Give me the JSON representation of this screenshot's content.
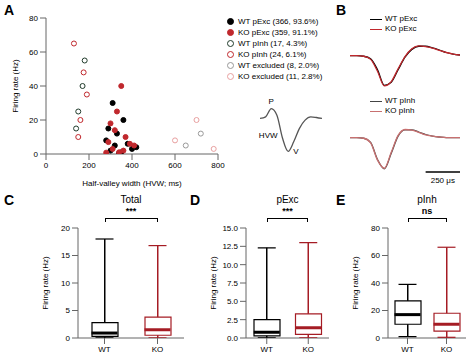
{
  "chart_data": [
    {
      "panel": "A",
      "type": "scatter",
      "xlabel": "Half-valley width (HVW; ms)",
      "ylabel": "Firing rate (Hz)",
      "xlim": [
        0,
        800
      ],
      "xticks": [
        0,
        200,
        400,
        600,
        800
      ],
      "ylim": [
        0,
        80
      ],
      "yticks": [
        0,
        20,
        40,
        60,
        80
      ],
      "grid": false,
      "legend": "upper right",
      "series": [
        {
          "name": "WT pExc (366, 93.6%)",
          "color": "#000000",
          "marker": "circle",
          "x": [
            300,
            320,
            350,
            280,
            400,
            330,
            360,
            420,
            310,
            380,
            290,
            340
          ],
          "values": [
            2,
            5,
            1,
            8,
            3,
            12,
            20,
            4,
            30,
            6,
            15,
            0.5
          ]
        },
        {
          "name": "KO pExc (359, 91.1%)",
          "color": "#c0282d",
          "marker": "circle",
          "x": [
            310,
            340,
            290,
            370,
            330,
            410,
            300,
            360,
            350,
            320,
            390,
            280
          ],
          "values": [
            3,
            1,
            7,
            10,
            25,
            5,
            18,
            2,
            40,
            14,
            6,
            0.8
          ]
        },
        {
          "name": "WT pInh (17, 4.3%)",
          "color": "#1f3a2a",
          "marker": "open_circle",
          "x": [
            150,
            170,
            140,
            180
          ],
          "values": [
            25,
            40,
            15,
            55
          ]
        },
        {
          "name": "KO pInh (24, 6.1%)",
          "color": "#c0282d",
          "marker": "open_circle",
          "x": [
            160,
            130,
            190,
            150,
            175
          ],
          "values": [
            20,
            65,
            35,
            10,
            48
          ]
        },
        {
          "name": "WT excluded (8, 2.0%)",
          "color": "#999999",
          "marker": "open_circle",
          "x": [
            650,
            720
          ],
          "values": [
            5,
            12
          ]
        },
        {
          "name": "KO excluded (11, 2.8%)",
          "color": "#e8a0a0",
          "marker": "open_circle",
          "x": [
            600,
            780,
            700
          ],
          "values": [
            8,
            3,
            20
          ]
        }
      ]
    },
    {
      "type": "line",
      "xlim": [
        0,
        550
      ],
      "ylim": [
        -1.2,
        0.5
      ],
      "tick_labels": false,
      "color": "#555555",
      "x": [
        0,
        50,
        100,
        150,
        200,
        250,
        300,
        350,
        400,
        450,
        500,
        550
      ],
      "values": [
        0,
        0.05,
        0.3,
        0.1,
        -0.6,
        -1,
        -0.7,
        -0.3,
        -0.05,
        0.05,
        0.03,
        0
      ],
      "annotations": [
        {
          "text": "P",
          "x": 100,
          "y": 0.3
        },
        {
          "text": "V",
          "x": 250,
          "y": -1
        },
        {
          "text": "HVW",
          "x": 200,
          "y": -0.5
        }
      ]
    },
    {
      "panel": "B",
      "type": "line",
      "xlim": [
        0,
        800
      ],
      "ylim": [
        -1.1,
        0.5
      ],
      "tick_labels": false,
      "legend": "upper right",
      "x": [
        0,
        50,
        100,
        150,
        200,
        250,
        300,
        350,
        400,
        450,
        500,
        550,
        600,
        650,
        700,
        750,
        800
      ],
      "series": [
        {
          "name": "WT pExc",
          "color": "#000000",
          "values": [
            0,
            0,
            -0.02,
            -0.1,
            -0.45,
            -0.95,
            -0.85,
            -0.45,
            -0.05,
            0.2,
            0.3,
            0.3,
            0.25,
            0.18,
            0.1,
            0.05,
            0.02
          ]
        },
        {
          "name": "KO pExc",
          "color": "#c0282d",
          "values": [
            0,
            0,
            -0.02,
            -0.12,
            -0.5,
            -0.97,
            -0.83,
            -0.42,
            -0.03,
            0.22,
            0.31,
            0.29,
            0.24,
            0.17,
            0.1,
            0.05,
            0.02
          ]
        }
      ]
    },
    {
      "type": "line",
      "xlim": [
        0,
        800
      ],
      "ylim": [
        -1.1,
        0.5
      ],
      "tick_labels": false,
      "legend": "upper right",
      "x": [
        0,
        50,
        100,
        150,
        200,
        250,
        300,
        350,
        400,
        450,
        500,
        550,
        600,
        650,
        700,
        750,
        800
      ],
      "series": [
        {
          "name": "WT pInh",
          "color": "#444444",
          "values": [
            0,
            0,
            -0.02,
            -0.15,
            -0.7,
            -1,
            -0.5,
            0.05,
            0.25,
            0.25,
            0.18,
            0.1,
            0.05,
            0.02,
            0,
            0,
            0
          ]
        },
        {
          "name": "KO pInh",
          "color": "#c87070",
          "values": [
            0,
            0,
            -0.02,
            -0.17,
            -0.72,
            -0.98,
            -0.47,
            0.07,
            0.26,
            0.24,
            0.17,
            0.09,
            0.05,
            0.02,
            0,
            0,
            0
          ]
        }
      ],
      "scale_bar": {
        "value": 250,
        "label": "250 μs"
      }
    },
    {
      "panel": "C",
      "type": "box",
      "title": "Total",
      "ylabel": "Firing rate (Hz)",
      "categories": [
        "WT",
        "KO"
      ],
      "colors": [
        "#000000",
        "#a51c24"
      ],
      "min": [
        0.02,
        0.02
      ],
      "q1": [
        0.3,
        0.5
      ],
      "median": [
        0.9,
        1.5
      ],
      "q3": [
        2.8,
        3.8
      ],
      "max": [
        18,
        16.8
      ],
      "ylim": [
        0,
        20
      ],
      "yticks": [
        0,
        5,
        10,
        15,
        20
      ],
      "significance": "***"
    },
    {
      "panel": "D",
      "type": "box",
      "title": "pExc",
      "ylabel": "Firing rate (Hz)",
      "categories": [
        "WT",
        "KO"
      ],
      "colors": [
        "#000000",
        "#a51c24"
      ],
      "min": [
        0.02,
        0.02
      ],
      "q1": [
        0.3,
        0.5
      ],
      "median": [
        0.8,
        1.4
      ],
      "q3": [
        2.5,
        3.3
      ],
      "max": [
        12.3,
        13
      ],
      "ylim": [
        0,
        15
      ],
      "yticks": [
        {
          "value": 0,
          "label": "0.0"
        },
        {
          "value": 2.5,
          "label": "2.5"
        },
        {
          "value": 5,
          "label": "5.0"
        },
        {
          "value": 7.5,
          "label": "7.5"
        },
        {
          "value": 10,
          "label": "10.0"
        },
        {
          "value": 12.5,
          "label": "12.5"
        },
        {
          "value": 15,
          "label": "15.0"
        }
      ],
      "significance": "***"
    },
    {
      "panel": "E",
      "type": "box",
      "title": "pInh",
      "ylabel": "Firing rate (Hz)",
      "categories": [
        "WT",
        "KO"
      ],
      "colors": [
        "#000000",
        "#a51c24"
      ],
      "min": [
        1,
        0.5
      ],
      "q1": [
        10,
        5
      ],
      "median": [
        17,
        10
      ],
      "q3": [
        27,
        18
      ],
      "max": [
        39,
        66
      ],
      "ylim": [
        0,
        80
      ],
      "yticks": [
        0,
        20,
        40,
        60,
        80
      ],
      "significance": "ns"
    }
  ]
}
